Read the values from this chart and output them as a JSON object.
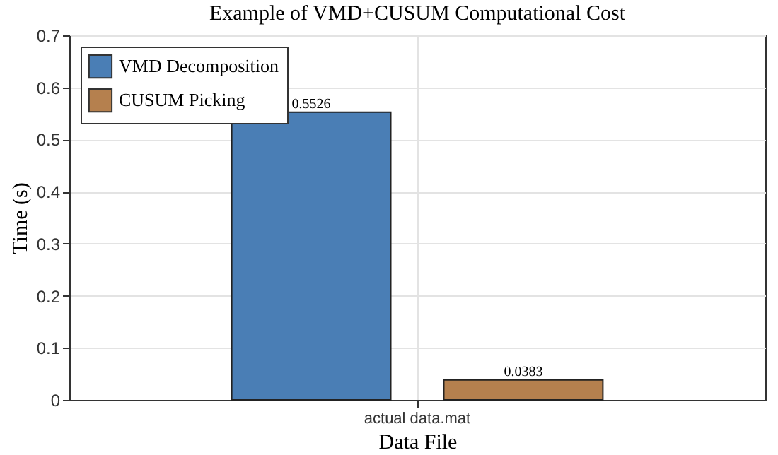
{
  "chart_data": {
    "type": "bar",
    "title": "Example of VMD+CUSUM Computational Cost",
    "xlabel": "Data File",
    "ylabel": "Time (s)",
    "categories": [
      "actual data.mat"
    ],
    "series": [
      {
        "name": "VMD Decomposition",
        "color": "#4a7eb5",
        "values": [
          0.5526
        ]
      },
      {
        "name": "CUSUM Picking",
        "color": "#b5804e",
        "values": [
          0.0383
        ]
      }
    ],
    "ylim": [
      0,
      0.7
    ],
    "yticks": [
      0,
      0.1,
      0.2,
      0.3,
      0.4,
      0.5,
      0.6,
      0.7
    ],
    "grid": true,
    "legend": "top left",
    "data_labels": true
  }
}
